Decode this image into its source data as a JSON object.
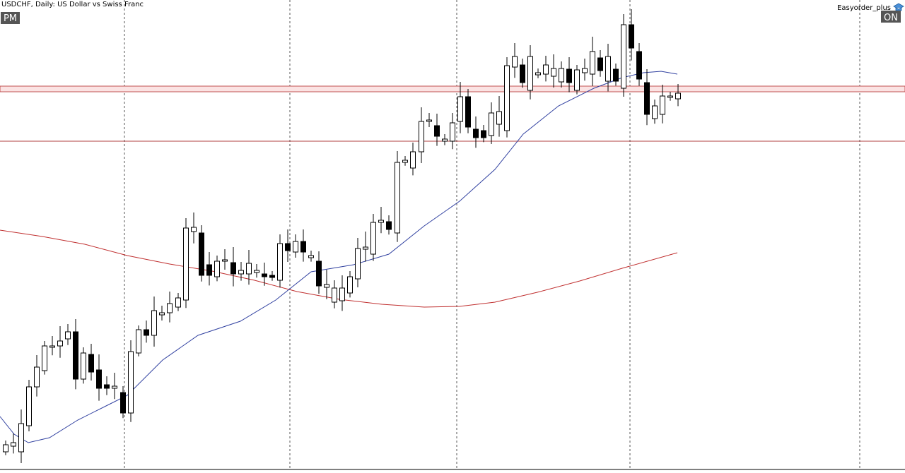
{
  "header": {
    "symbol_label": "USDCHF, Daily:  US Dollar vs Swiss Franc",
    "mode_badge": "PM"
  },
  "plugin": {
    "label": "Easyorder_plus",
    "status_badge": "ON"
  }
}
